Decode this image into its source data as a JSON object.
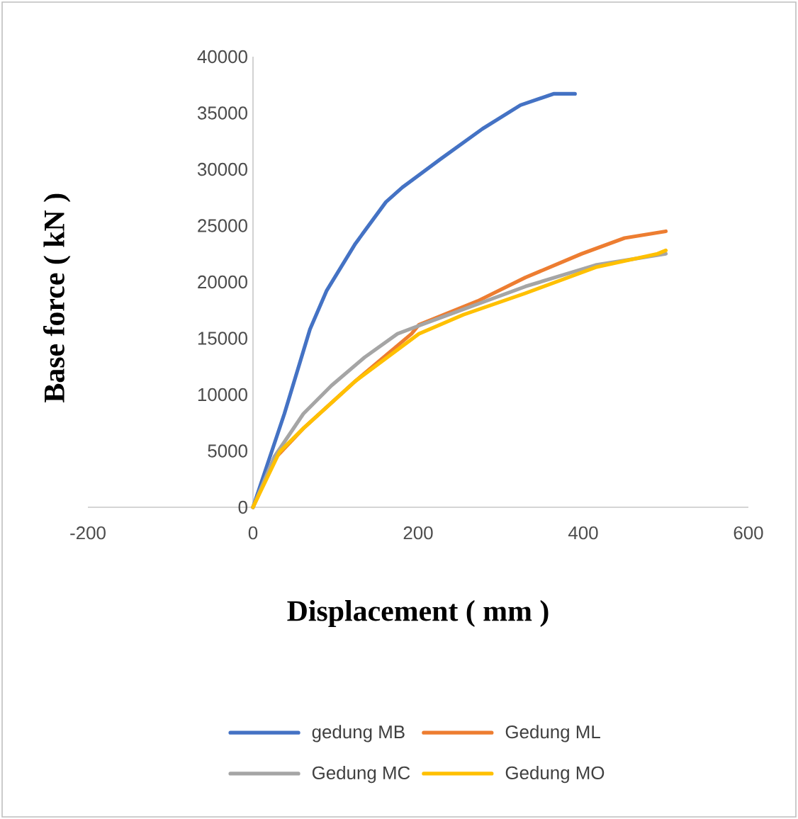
{
  "chart_data": {
    "type": "line",
    "xlabel": "Displacement ( mm )",
    "ylabel": "Base force ( kN )",
    "xlim": [
      -200,
      600
    ],
    "ylim": [
      0,
      40000
    ],
    "xticks": [
      -200,
      0,
      200,
      400,
      600
    ],
    "yticks": [
      0,
      5000,
      10000,
      15000,
      20000,
      25000,
      30000,
      35000,
      40000
    ],
    "legend": "bottom",
    "marker": "none",
    "line_style": "solid",
    "grid": false,
    "series": [
      {
        "name": "gedung MB",
        "color": "#4472c4",
        "x": [
          0,
          38,
          69,
          89,
          124,
          161,
          181,
          227,
          278,
          324,
          364,
          390
        ],
        "values": [
          0,
          8300,
          15800,
          19200,
          23400,
          27100,
          28400,
          30900,
          33600,
          35700,
          36700,
          36700
        ]
      },
      {
        "name": "Gedung ML",
        "color": "#ed7d31",
        "x": [
          0,
          26,
          61,
          124,
          192,
          201,
          272,
          330,
          398,
          450,
          500
        ],
        "values": [
          0,
          4300,
          7000,
          11200,
          15400,
          16200,
          18300,
          20400,
          22500,
          23900,
          24500
        ]
      },
      {
        "name": "Gedung MC",
        "color": "#a5a5a5",
        "x": [
          0,
          26,
          61,
          95,
          135,
          175,
          204,
          330,
          415,
          500
        ],
        "values": [
          0,
          4500,
          8300,
          10800,
          13300,
          15400,
          16200,
          19600,
          21500,
          22500
        ]
      },
      {
        "name": "Gedung MO",
        "color": "#ffc000",
        "x": [
          0,
          32,
          61,
          124,
          201,
          255,
          330,
          415,
          490,
          500
        ],
        "values": [
          0,
          4900,
          7000,
          11200,
          15400,
          17100,
          19000,
          21300,
          22500,
          22800
        ]
      }
    ]
  }
}
